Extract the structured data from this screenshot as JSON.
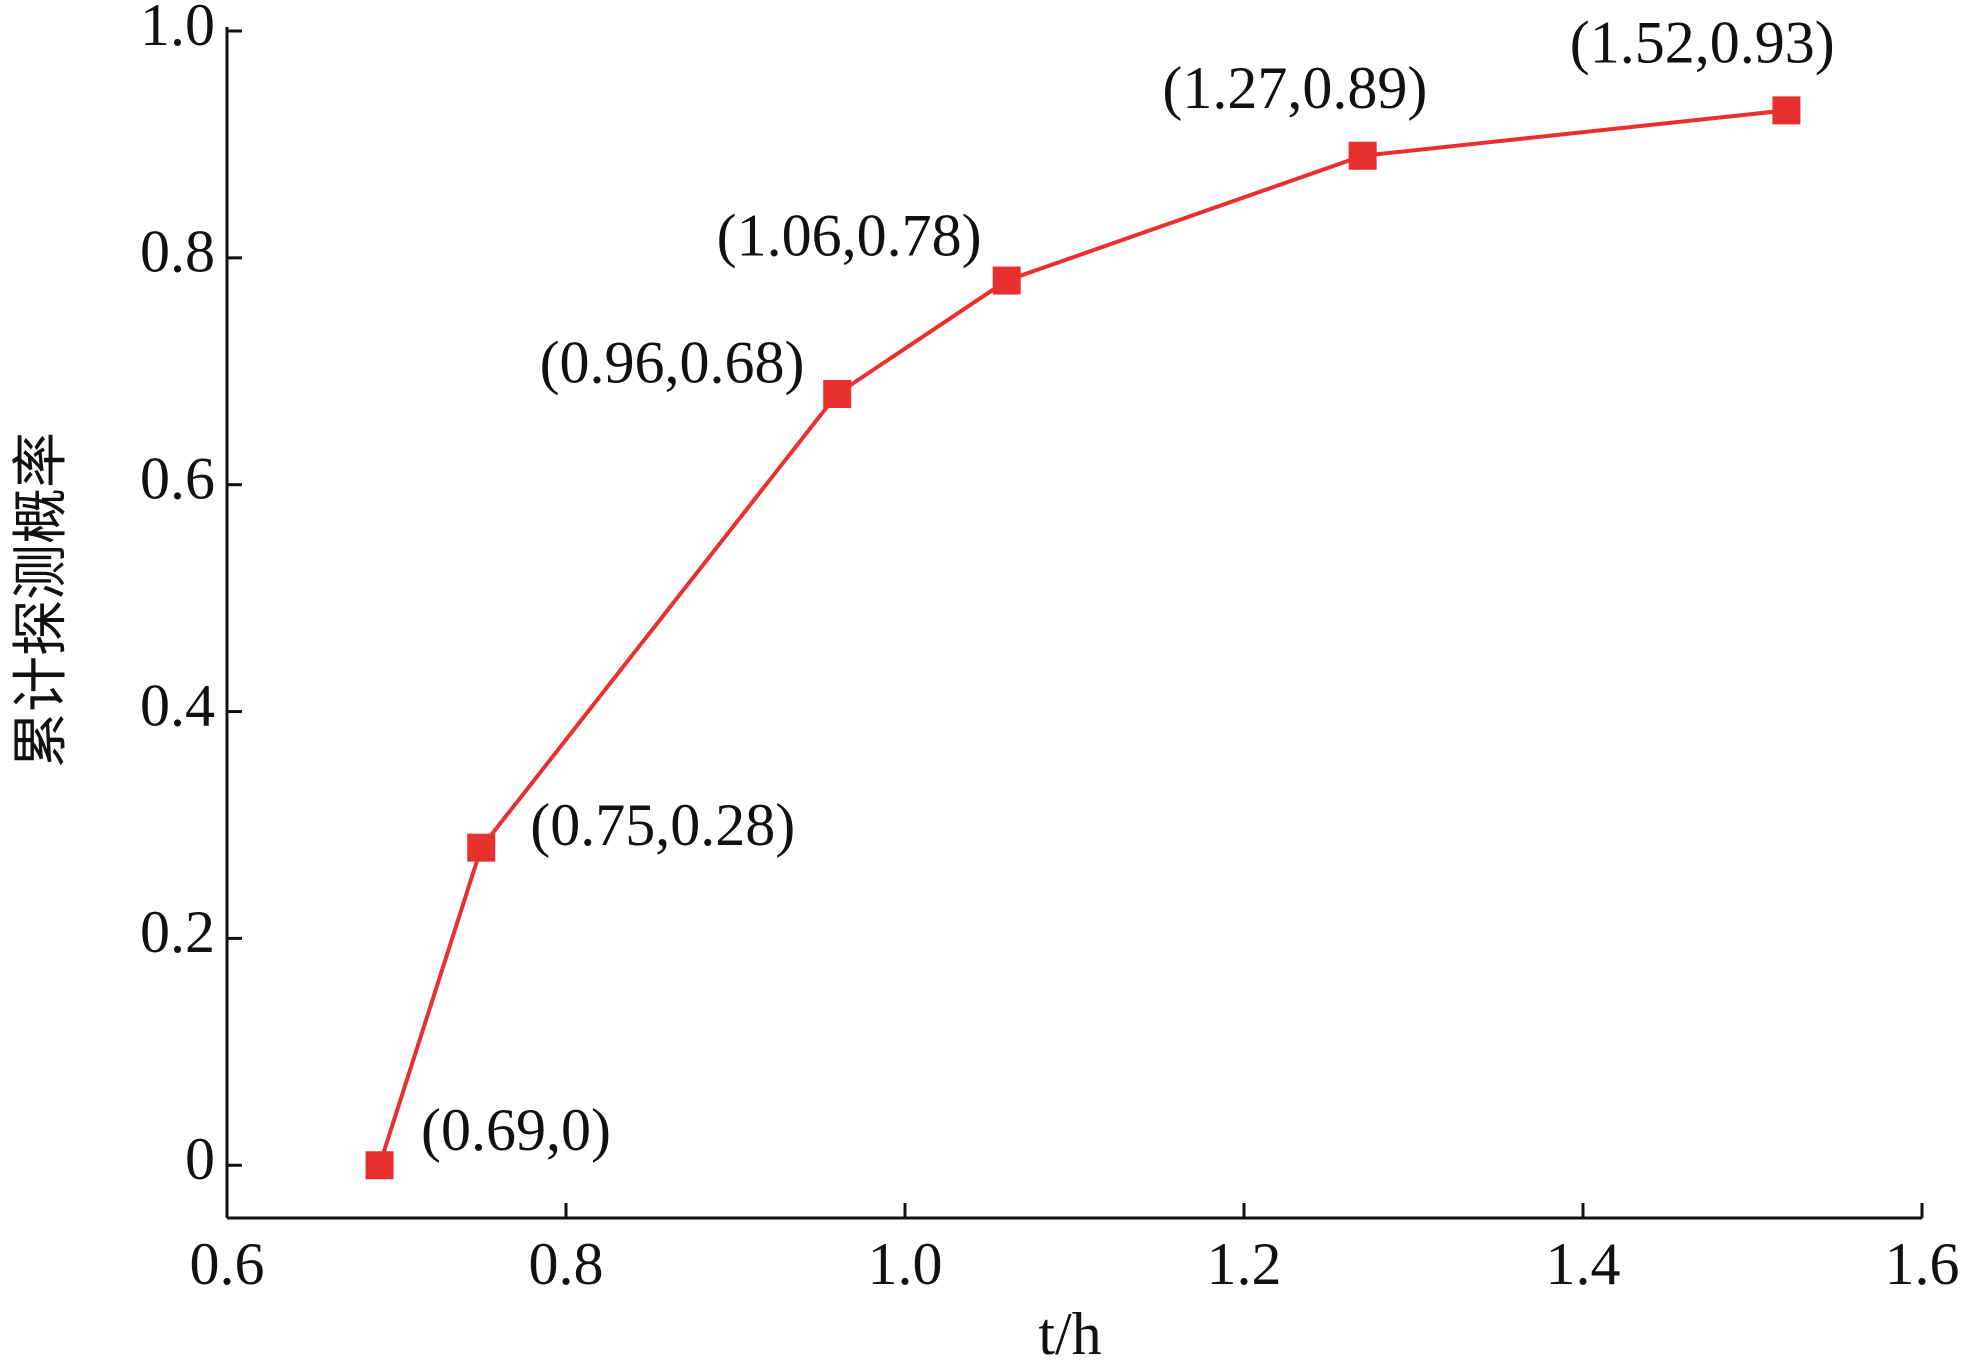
{
  "chart_data": {
    "type": "line",
    "xlabel": "t/h",
    "ylabel": "累计探测概率",
    "x": [
      0.69,
      0.75,
      0.96,
      1.06,
      1.27,
      1.52
    ],
    "series": [
      {
        "color": "#e8312f",
        "values": [
          0,
          0.28,
          0.68,
          0.78,
          0.89,
          0.93
        ],
        "value_labels": [
          "(0.69,0)",
          "(0.75,0.28)",
          "(0.96,0.68)",
          "(1.06,0.78)",
          "(1.27,0.89)",
          "(1.52,0.93)"
        ]
      }
    ],
    "xlim": [
      0.6,
      1.6
    ],
    "xticks": [
      0.6,
      0.8,
      {
        "value": 1,
        "label": "1.0"
      },
      1.2,
      1.4,
      1.6
    ],
    "ylim": [
      -0.0465,
      1
    ],
    "yticks": [
      0,
      0.2,
      0.4,
      0.6,
      0.8,
      {
        "value": 1,
        "label": "1.0"
      }
    ],
    "grid": false,
    "marker": "square"
  }
}
